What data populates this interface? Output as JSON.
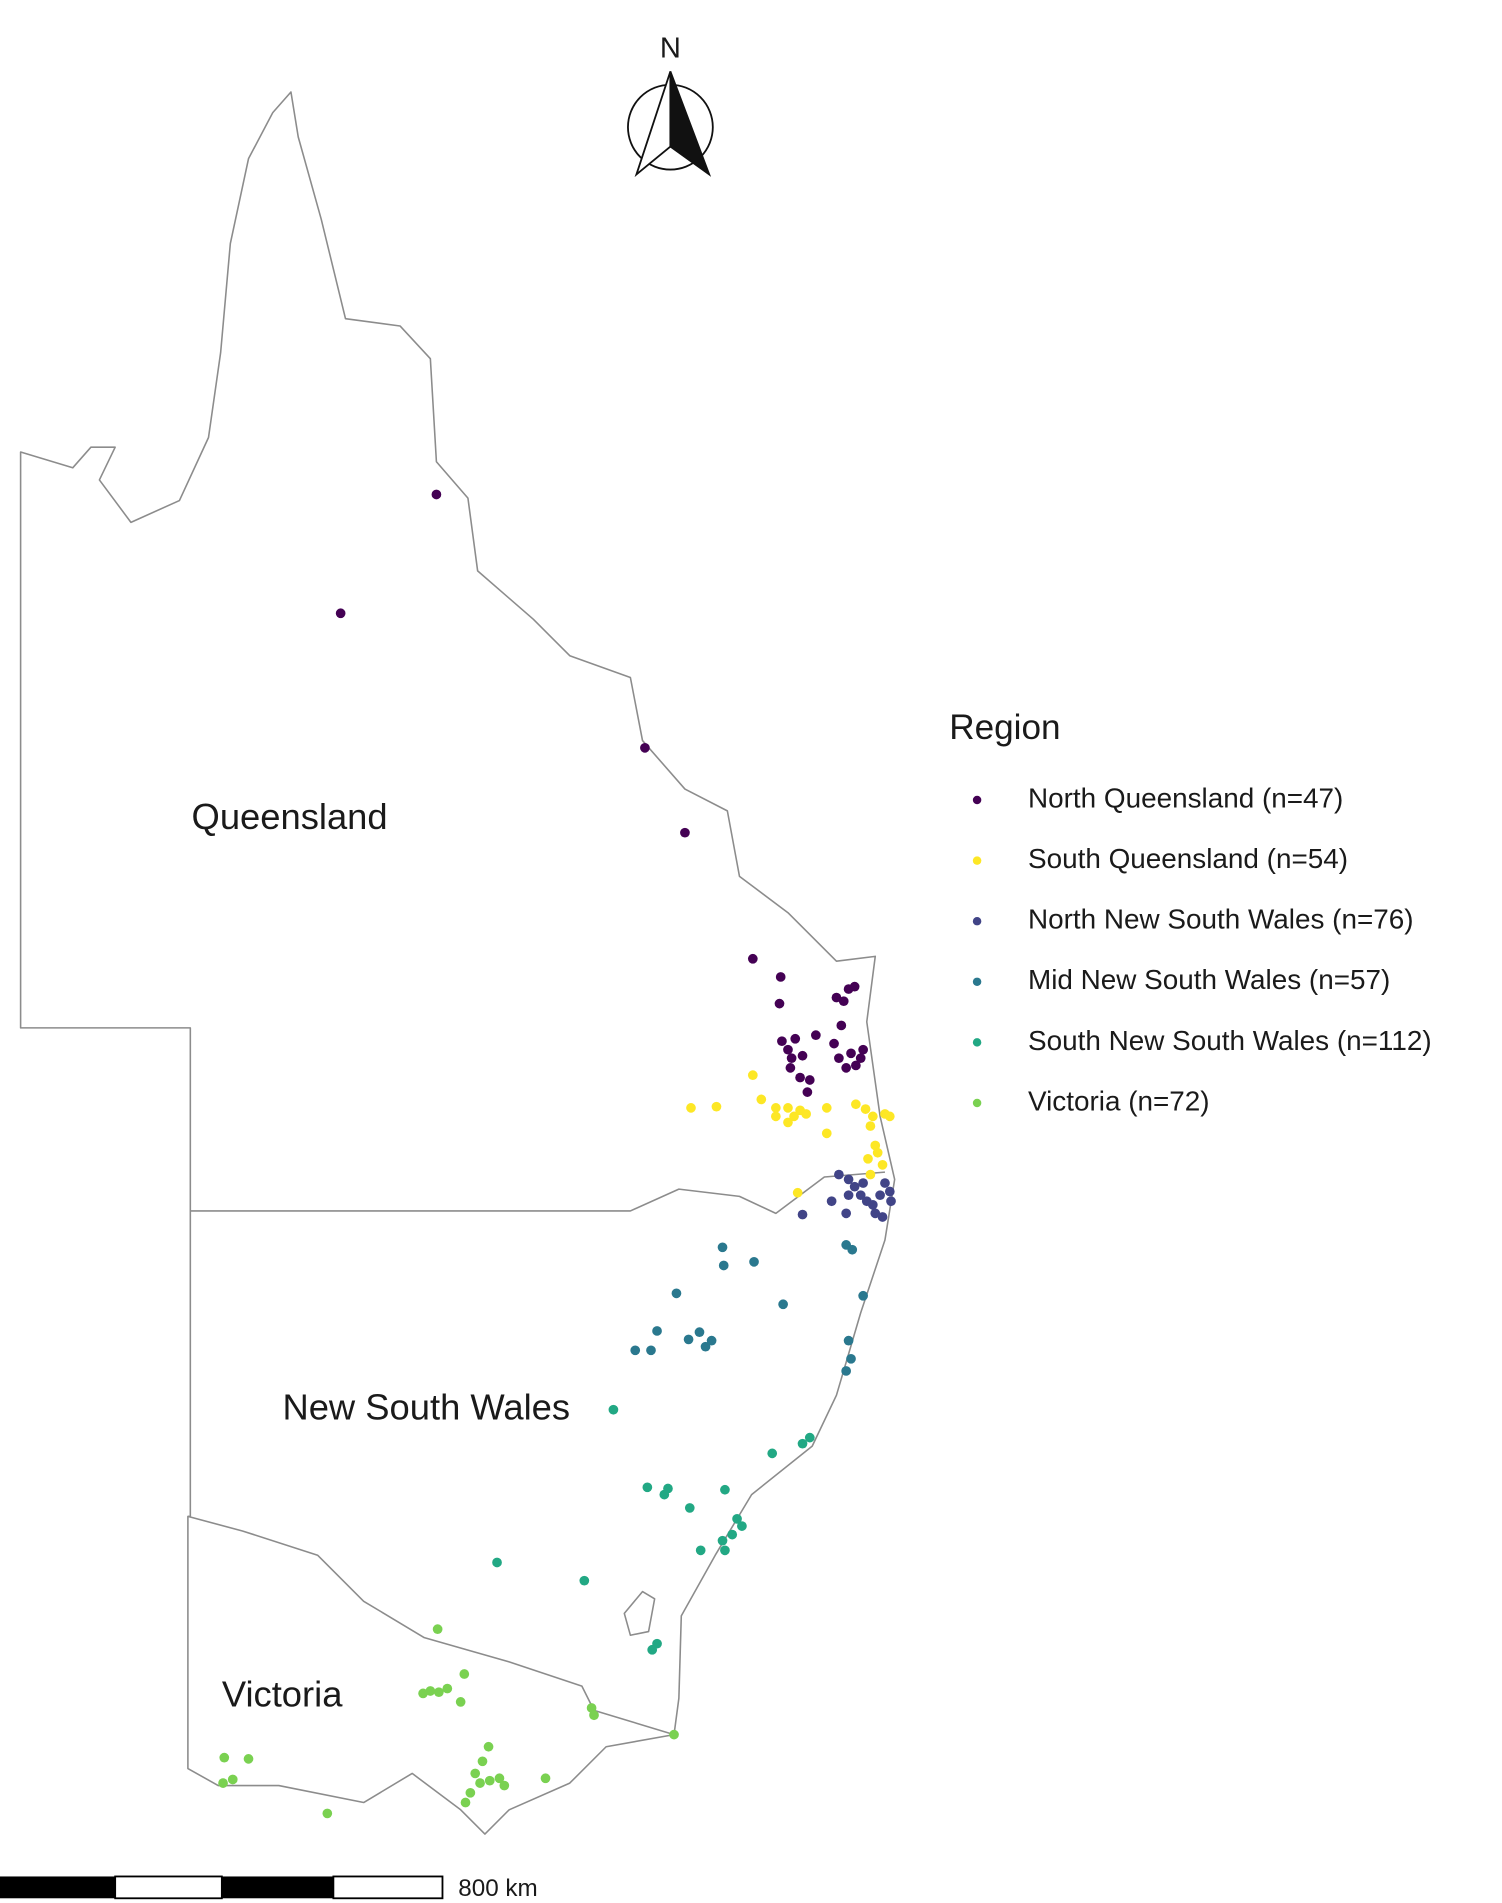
{
  "north_label": "N",
  "state_labels": [
    "Queensland",
    "New South Wales",
    "Victoria"
  ],
  "legend": {
    "title": "Region",
    "entries": [
      {
        "label": "North Queensland (n=47)",
        "color": "#440154"
      },
      {
        "label": "South Queensland (n=54)",
        "color": "#FDE725"
      },
      {
        "label": "North New South Wales (n=76)",
        "color": "#414487"
      },
      {
        "label": "Mid New South Wales (n=57)",
        "color": "#2A788E"
      },
      {
        "label": "South New South Wales (n=112)",
        "color": "#22A884"
      },
      {
        "label": "Victoria (n=72)",
        "color": "#7AD151"
      }
    ]
  },
  "scale_bar": {
    "label": "800 km"
  }
}
